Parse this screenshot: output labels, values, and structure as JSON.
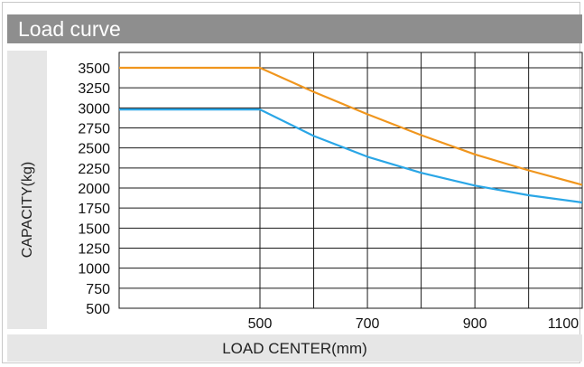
{
  "header": {
    "title": "Load curve"
  },
  "colors": {
    "header_bg": "#8e8e8e",
    "panel_bg": "#e6e6e6",
    "grid": "#1a1a1a"
  },
  "chart_data": {
    "type": "line",
    "title": "Load curve",
    "xlabel": "LOAD CENTER(mm)",
    "ylabel": "CAPACITY(kg)",
    "xlim": [
      240,
      1100
    ],
    "ylim": [
      500,
      3600
    ],
    "x_ticks": [
      500,
      700,
      900,
      1100
    ],
    "y_ticks": [
      500,
      750,
      1000,
      1250,
      1500,
      1750,
      2000,
      2250,
      2500,
      2750,
      3000,
      3250,
      3500
    ],
    "grid": true,
    "series": [
      {
        "color": "#f0961e",
        "x": [
          240,
          500,
          600,
          700,
          800,
          900,
          1000,
          1100
        ],
        "y": [
          3500,
          3500,
          3200,
          2920,
          2660,
          2420,
          2220,
          2040
        ]
      },
      {
        "color": "#2aa6e6",
        "x": [
          240,
          500,
          600,
          700,
          800,
          900,
          1000,
          1100
        ],
        "y": [
          2980,
          2980,
          2650,
          2390,
          2190,
          2030,
          1910,
          1820
        ]
      }
    ]
  }
}
